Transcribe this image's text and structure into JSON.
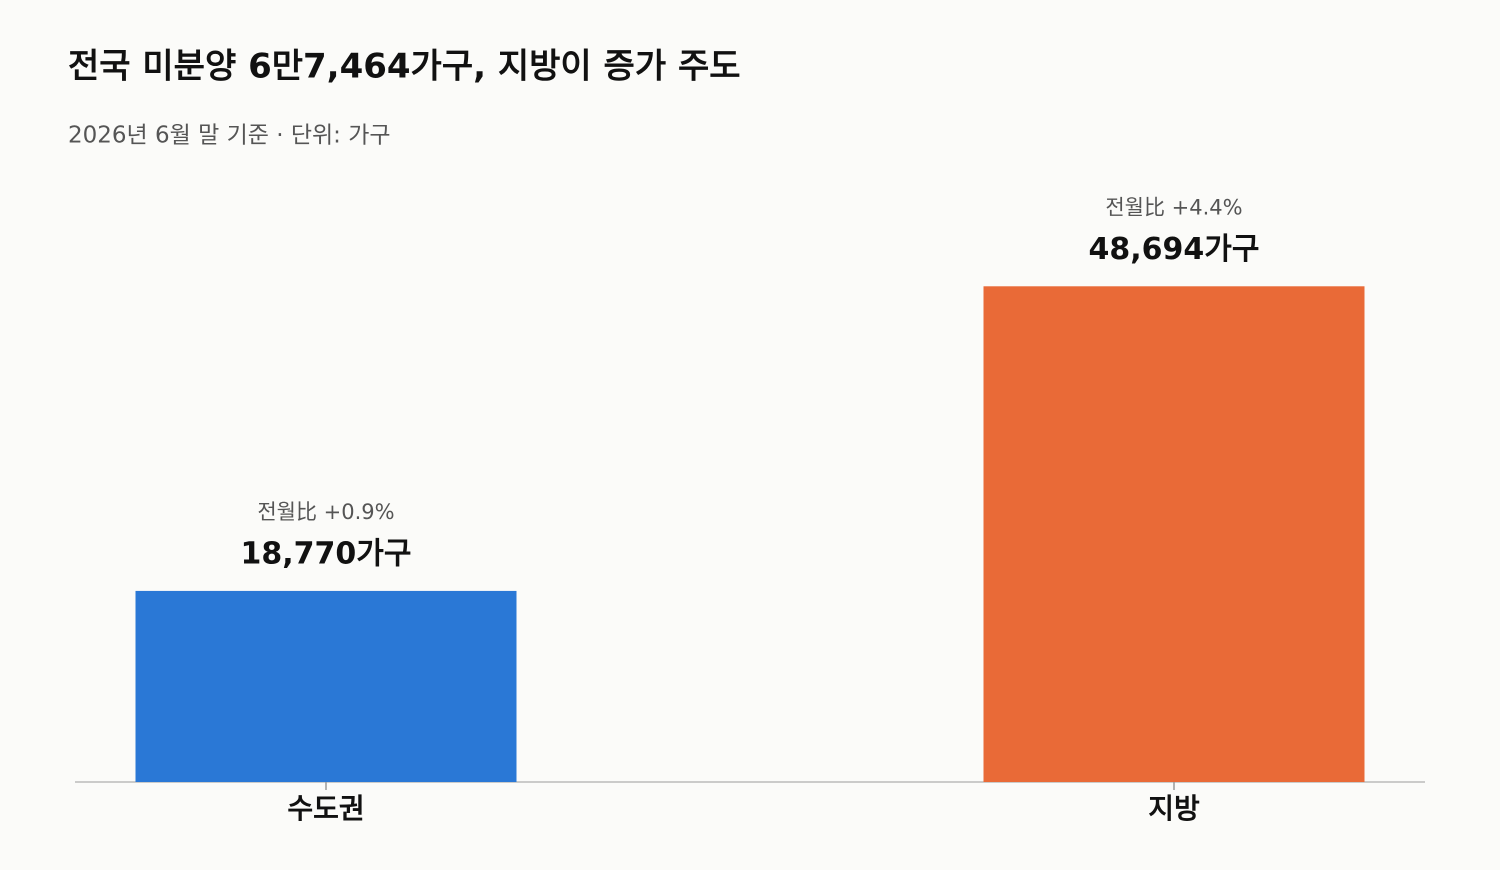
{
  "chart_data": {
    "type": "bar",
    "title": "전국 미분양 6만7,464가구, 지방이 증가 주도",
    "subtitle": "2026년 6월 말 기준 · 단위: 가구",
    "categories": [
      "수도권",
      "지방"
    ],
    "values": [
      18770,
      48694
    ],
    "value_labels": [
      "18,770가구",
      "48,694가구"
    ],
    "annotations": [
      "전월比 +0.9%",
      "전월比 +4.4%"
    ],
    "colors": [
      "#2a78d6",
      "#e96a37"
    ],
    "ylim": [
      0,
      50000
    ],
    "grid": false
  }
}
